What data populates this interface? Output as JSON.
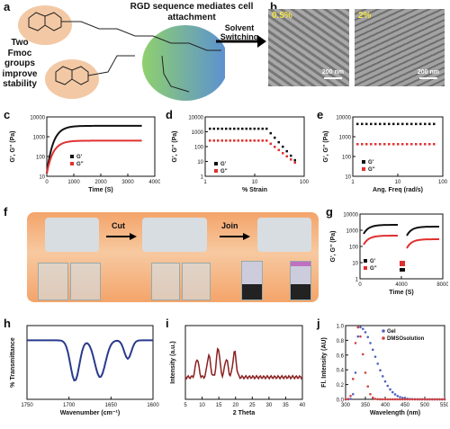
{
  "panels": {
    "a": {
      "label": "a",
      "caption": "Two Fmoc groups improve stability",
      "rgd": "RGD sequence mediates cell attachment",
      "arrow": "Solvent Switching"
    },
    "b": {
      "label": "b",
      "left_pct": "0.5%",
      "right_pct": "2%",
      "scale": "200 nm"
    },
    "c": {
      "label": "c",
      "ylabel": "G', G'' (Pa)",
      "xlabel": "Time (S)",
      "yticks": [
        "10000",
        "1000",
        "100",
        "10"
      ],
      "xticks": [
        "0",
        "1000",
        "2000",
        "3000",
        "4000"
      ],
      "legend": [
        "G'",
        "G''"
      ]
    },
    "d": {
      "label": "d",
      "ylabel": "G', G'' (Pa)",
      "xlabel": "% Strain",
      "yticks": [
        "10000",
        "1000",
        "100",
        "10",
        "1"
      ],
      "xticks": [
        "1",
        "10",
        "100"
      ],
      "legend": [
        "G'",
        "G''"
      ]
    },
    "e": {
      "label": "e",
      "ylabel": "G', G'' (Pa)",
      "xlabel": "Ang. Freq (rad/s)",
      "yticks": [
        "10000",
        "1000",
        "100",
        "10"
      ],
      "xticks": [
        "1",
        "10",
        "100"
      ],
      "legend": [
        "G'",
        "G''"
      ]
    },
    "f": {
      "label": "f",
      "cut": "Cut",
      "join": "Join"
    },
    "g": {
      "label": "g",
      "ylabel": "G', G'' (Pa)",
      "xlabel": "Time (S)",
      "yticks": [
        "10000",
        "1000",
        "100",
        "10",
        "1"
      ],
      "xticks": [
        "0",
        "4000",
        "8000"
      ],
      "xticks_minor": [
        "2000",
        "6000"
      ],
      "legend": [
        "G'",
        "G''"
      ]
    },
    "h": {
      "label": "h",
      "ylabel": "% Transmittance",
      "xlabel": "Wavenumber (cm⁻¹)",
      "xticks": [
        "1750",
        "1700",
        "1650",
        "1600"
      ]
    },
    "i": {
      "label": "i",
      "ylabel": "Intensity (a.u.)",
      "xlabel": "2 Theta",
      "xticks": [
        "5",
        "10",
        "15",
        "20",
        "25",
        "30",
        "35",
        "40"
      ]
    },
    "j": {
      "label": "j",
      "ylabel": "Fl. Intensity (AU)",
      "xlabel": "Wavelength (nm)",
      "yticks": [
        "1.0",
        "0.8",
        "0.6",
        "0.4",
        "0.2",
        "0.0"
      ],
      "xticks": [
        "300",
        "350",
        "400",
        "450",
        "500",
        "550"
      ],
      "legend": [
        "Gel",
        "DMSOsolution"
      ]
    }
  },
  "colors": {
    "gp": "#111111",
    "gpp": "#e03030",
    "ftir": "#2a3a8c",
    "xrd": "#8b2020",
    "gel": "#5060c0",
    "dmso": "#d04040"
  }
}
